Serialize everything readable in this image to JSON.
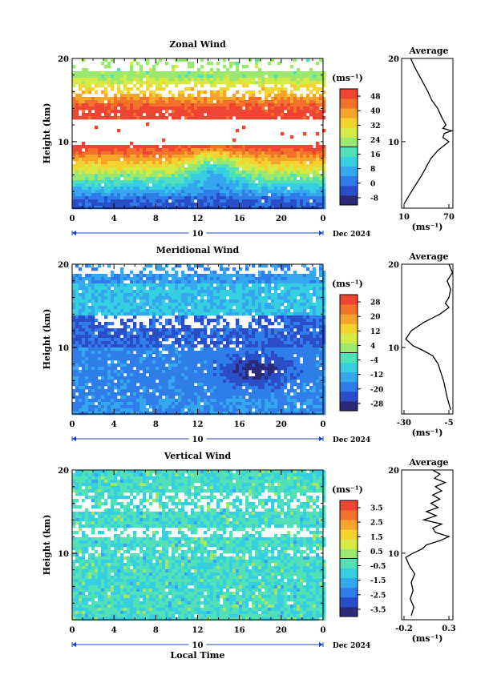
{
  "chart_data": [
    {
      "type": "heatmap",
      "title": "Zonal Wind",
      "ylabel": "Height (km)",
      "ylim": [
        2,
        20
      ],
      "y_ticks": [
        "20",
        "10"
      ],
      "x_ticks": [
        "0",
        "4",
        "8",
        "12",
        "16",
        "20",
        "0"
      ],
      "xlim": [
        0,
        24
      ],
      "date_label": "10",
      "date_suffix": "Dec 2024",
      "colorbar": {
        "unit": "(ms⁻¹)",
        "ticks": [
          "48",
          "40",
          "32",
          "24",
          "16",
          "8",
          "0",
          "-8"
        ],
        "range": [
          -12,
          52
        ]
      },
      "profile": {
        "title": "Average",
        "y_ticks": [
          "20",
          "10"
        ],
        "x_ticks": [
          "10",
          "70"
        ],
        "xlim": [
          10,
          70
        ],
        "xlabel": "(ms⁻¹)",
        "heights": [
          2.5,
          4,
          6,
          8,
          9,
          9.7,
          10,
          10.5,
          11,
          11.3,
          11.6,
          12,
          13,
          14,
          15,
          16,
          17,
          18,
          19,
          20
        ],
        "values": [
          10,
          20,
          34,
          46,
          56,
          66,
          70,
          62,
          64,
          74,
          62,
          66,
          60,
          55,
          47,
          42,
          36,
          30,
          24,
          19
        ]
      }
    },
    {
      "type": "heatmap",
      "title": "Meridional Wind",
      "ylabel": "Height (km)",
      "ylim": [
        2,
        20
      ],
      "y_ticks": [
        "20",
        "10"
      ],
      "x_ticks": [
        "0",
        "4",
        "8",
        "12",
        "16",
        "20",
        "0"
      ],
      "xlim": [
        0,
        24
      ],
      "date_label": "10",
      "date_suffix": "Dec 2024",
      "colorbar": {
        "unit": "(ms⁻¹)",
        "ticks": [
          "28",
          "20",
          "12",
          "4",
          "-4",
          "-12",
          "-20",
          "-28"
        ],
        "range": [
          -32,
          32
        ]
      },
      "profile": {
        "title": "Average",
        "y_ticks": [
          "20",
          "10"
        ],
        "x_ticks": [
          "-30",
          "-5"
        ],
        "xlim": [
          -30,
          -5
        ],
        "xlabel": "(ms⁻¹)",
        "heights": [
          2.5,
          4,
          6,
          8,
          9,
          9.7,
          10.2,
          11,
          12,
          13,
          14,
          14.8,
          15.3,
          16,
          17,
          18,
          19,
          20
        ],
        "values": [
          -4,
          -6,
          -8,
          -11,
          -14,
          -20,
          -25,
          -29,
          -26,
          -19,
          -10,
          -5,
          -7,
          -5,
          -4,
          -6,
          -3,
          -5
        ]
      }
    },
    {
      "type": "heatmap",
      "title": "Vertical Wind",
      "ylabel": "Height (km)",
      "xlabel": "Local Time",
      "ylim": [
        2,
        20
      ],
      "y_ticks": [
        "20",
        "10"
      ],
      "x_ticks": [
        "0",
        "4",
        "8",
        "12",
        "16",
        "20",
        "0"
      ],
      "xlim": [
        0,
        24
      ],
      "date_label": "10",
      "date_suffix": "Dec 2024",
      "colorbar": {
        "unit": "(ms⁻¹)",
        "ticks": [
          "3.5",
          "2.5",
          "1.5",
          "0.5",
          "-0.5",
          "-1.5",
          "-2.5",
          "-3.5"
        ],
        "range": [
          -4,
          4
        ]
      },
      "profile": {
        "title": "Average",
        "y_ticks": [
          "20",
          "10"
        ],
        "x_ticks": [
          "-0.2",
          "0.3"
        ],
        "xlim": [
          -0.2,
          0.3
        ],
        "xlabel": "(ms⁻¹)",
        "heights": [
          2.5,
          3.5,
          4.5,
          5.5,
          6.5,
          7.5,
          8.5,
          9.5,
          10,
          10.5,
          11,
          11.5,
          12,
          12.5,
          13,
          13.5,
          14,
          14.5,
          15,
          15.5,
          16,
          16.5,
          17,
          17.5,
          18,
          18.5,
          19,
          19.5,
          20
        ],
        "values": [
          -0.12,
          -0.09,
          -0.13,
          -0.1,
          -0.12,
          -0.08,
          -0.14,
          -0.18,
          -0.1,
          0.0,
          0.05,
          0.2,
          0.3,
          0.15,
          0.12,
          0.22,
          0.02,
          0.16,
          0.05,
          0.18,
          0.1,
          0.2,
          0.12,
          0.22,
          0.15,
          0.26,
          0.14,
          0.2,
          0.12
        ]
      }
    }
  ],
  "colors": {
    "palette": [
      "#2b2a7a",
      "#2a4ec8",
      "#2f7de8",
      "#35a7ef",
      "#36cfe2",
      "#52e0b6",
      "#9be86e",
      "#d6ea45",
      "#f6d231",
      "#f7a42a",
      "#f4712a",
      "#ef4533"
    ],
    "gap": "#ffffff",
    "axis": "#000000",
    "date_bar": "#1f3fbf"
  }
}
